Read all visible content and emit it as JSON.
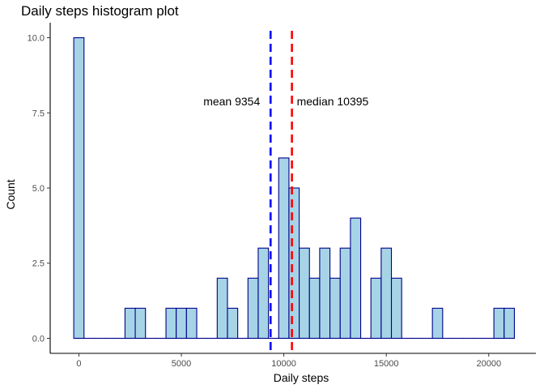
{
  "chart_data": {
    "type": "bar",
    "title": "Daily steps histogram plot",
    "xlabel": "Daily steps",
    "ylabel": "Count",
    "xlim": [
      -1400,
      22300
    ],
    "ylim": [
      -0.5,
      10.5
    ],
    "x_ticks": [
      0,
      5000,
      10000,
      15000,
      20000
    ],
    "x_tick_labels": [
      "0",
      "5000",
      "10000",
      "15000",
      "20000"
    ],
    "y_ticks": [
      0,
      2.5,
      5,
      7.5,
      10
    ],
    "y_tick_labels": [
      "0.0",
      "2.5",
      "5.0",
      "7.5",
      "10.0"
    ],
    "bin_width": 500,
    "bin_centers": [
      0,
      500,
      1000,
      1500,
      2000,
      2500,
      3000,
      3500,
      4000,
      4500,
      5000,
      5500,
      6000,
      6500,
      7000,
      7500,
      8000,
      8500,
      9000,
      9500,
      10000,
      10500,
      11000,
      11500,
      12000,
      12500,
      13000,
      13500,
      14000,
      14500,
      15000,
      15500,
      16000,
      16500,
      17000,
      17500,
      18000,
      18500,
      19000,
      19500,
      20000,
      20500,
      21000
    ],
    "counts": [
      10,
      0,
      0,
      0,
      0,
      1,
      1,
      0,
      0,
      1,
      1,
      1,
      0,
      0,
      2,
      1,
      0,
      2,
      3,
      0,
      6,
      5,
      3,
      2,
      3,
      2,
      3,
      4,
      0,
      2,
      3,
      2,
      0,
      0,
      0,
      1,
      0,
      0,
      0,
      0,
      0,
      1,
      1
    ],
    "bar_fill": "#a6d4e6",
    "bar_stroke": "#00008b",
    "annotations": [
      {
        "label": "mean 9354",
        "value": 9354,
        "color": "#0000ff"
      },
      {
        "label": "median 10395",
        "value": 10395,
        "color": "#ff0000"
      }
    ],
    "grid": false,
    "legend": "none"
  }
}
